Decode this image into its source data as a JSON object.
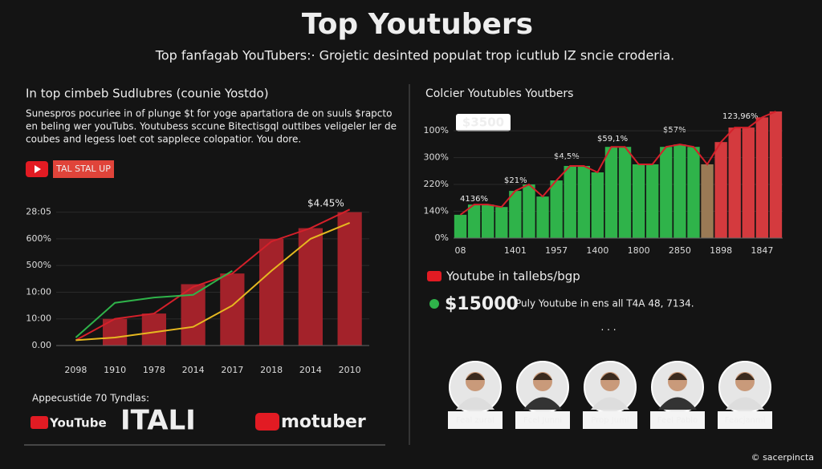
{
  "header": {
    "title": "Top Youtubers",
    "subtitle": "Top fanfagab YouTubers:· Grojetic desinted populat trop icutlub IZ sncie croderia."
  },
  "left": {
    "heading": "In top cimbeb Sudlubres (counie Yostdo)",
    "paragraph": [
      "Sunespros pocuriee in of plunge $t for yoge apartatiora de on suuls $rapcto",
      "en beling wer youTubs. Youtubess sccune Bitectisgql outtibes veligeler ler de",
      "coubes and legess loet cot sapplece colopatior. You dore."
    ],
    "badge": "TAL STAL UP",
    "footnote": "Appecustide 70 Tyndlas:",
    "logos": [
      "YouTube",
      "ITALI",
      "motuber"
    ]
  },
  "chart_data": [
    {
      "type": "bar",
      "annotation": "$4.45%",
      "categories": [
        "2098",
        "1910",
        "1978",
        "2014",
        "2017",
        "2018",
        "2014",
        "2010"
      ],
      "series": [
        {
          "type": "bar",
          "color": "#a3222a",
          "values": [
            null,
            1.0,
            1.2,
            2.3,
            2.7,
            4.0,
            4.4,
            5.0
          ]
        },
        {
          "type": "line",
          "color": "#d4202a",
          "values": [
            0.2,
            1.0,
            1.2,
            2.2,
            2.7,
            3.9,
            4.4,
            5.1
          ]
        },
        {
          "type": "line",
          "color": "#2fb34a",
          "values": [
            0.3,
            1.6,
            1.8,
            1.9,
            2.8,
            null,
            null,
            null
          ]
        },
        {
          "type": "line",
          "color": "#e6b820",
          "values": [
            0.2,
            0.3,
            0.5,
            0.7,
            1.5,
            2.8,
            4.0,
            4.6
          ]
        }
      ],
      "ylim": [
        0,
        5.8
      ],
      "yticks": [
        {
          "value": 0,
          "label": "0.00"
        },
        {
          "value": 1,
          "label": "10:00"
        },
        {
          "value": 2,
          "label": "10:00"
        },
        {
          "value": 3,
          "label": "500%"
        },
        {
          "value": 4,
          "label": "600%"
        },
        {
          "value": 5,
          "label": "28:05"
        }
      ]
    },
    {
      "type": "bar",
      "title": "Colcier Youtubles Youtbers",
      "annotations": [
        "$3500",
        "4136%",
        "$21%",
        "$4,5%",
        "$59,1%",
        "$57%",
        "123,96%"
      ],
      "categories": [
        "08",
        null,
        null,
        null,
        "1401",
        null,
        null,
        "1957",
        null,
        null,
        "1400",
        null,
        null,
        "1800",
        null,
        null,
        "2850",
        null,
        null,
        "1898",
        null,
        null,
        "1847",
        null
      ],
      "values": [
        0.87,
        1.25,
        1.25,
        1.16,
        1.76,
        2.0,
        1.55,
        2.15,
        2.69,
        2.69,
        2.45,
        3.4,
        3.4,
        2.75,
        2.75,
        3.4,
        3.49,
        3.4,
        2.75,
        3.58,
        4.12,
        4.12,
        4.5,
        4.72
      ],
      "colors": [
        "#2fb34a",
        "#2fb34a",
        "#2fb34a",
        "#2fb34a",
        "#2fb34a",
        "#2fb34a",
        "#2fb34a",
        "#2fb34a",
        "#2fb34a",
        "#2fb34a",
        "#2fb34a",
        "#2fb34a",
        "#2fb34a",
        "#2fb34a",
        "#2fb34a",
        "#2fb34a",
        "#2fb34a",
        "#2fb34a",
        "#9a7a55",
        "#d43a3e",
        "#d43a3e",
        "#d43a3e",
        "#d43a3e",
        "#d43a3e"
      ],
      "line_color": "#d4202a",
      "ylim": [
        0,
        4.9
      ],
      "yticks": [
        {
          "value": 0,
          "label": "0%"
        },
        {
          "value": 1,
          "label": "140%"
        },
        {
          "value": 2,
          "label": "220%"
        },
        {
          "value": 3,
          "label": "300%"
        },
        {
          "value": 4,
          "label": "100%"
        }
      ]
    }
  ],
  "right": {
    "legend": "Youtube in tallebs/bgp",
    "stat": "$15000",
    "stat_note": "Puly Youtube in ens all T4A 48, 7134.",
    "dots": "· · ·",
    "people": [
      "Feal zural",
      "Fcel Junni",
      "Prop Jumi",
      "Feel Pablo",
      "Feacjanml"
    ],
    "credit": "© sacerpincta"
  }
}
